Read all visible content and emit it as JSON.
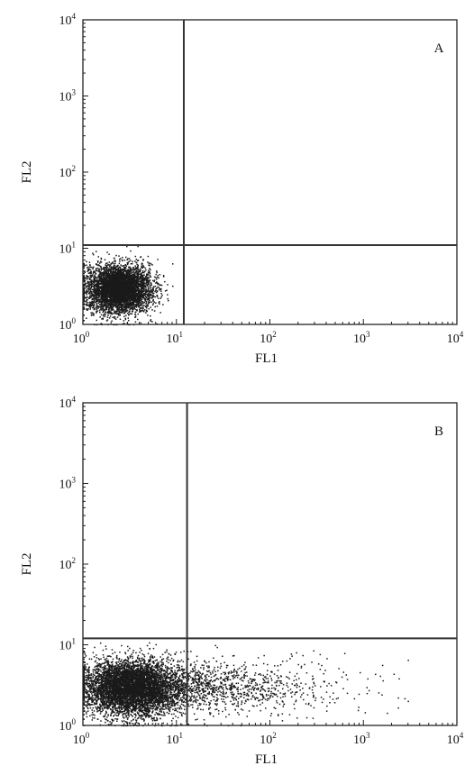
{
  "chart_data": [
    {
      "type": "scatter",
      "panel_label": "A",
      "xlabel": "FL1",
      "ylabel": "FL2",
      "x_scale": "log",
      "y_scale": "log",
      "xlim": [
        1,
        10000
      ],
      "ylim": [
        1,
        10000
      ],
      "x_ticks": [
        1,
        10,
        100,
        1000,
        10000
      ],
      "y_ticks": [
        1,
        10,
        100,
        1000,
        10000
      ],
      "tick_labels": [
        {
          "base": "10",
          "exp": "0"
        },
        {
          "base": "10",
          "exp": "1"
        },
        {
          "base": "10",
          "exp": "2"
        },
        {
          "base": "10",
          "exp": "3"
        },
        {
          "base": "10",
          "exp": "4"
        }
      ],
      "quadrant_gate": {
        "x": 12,
        "y": 11
      },
      "points_color": "#1a1a1a",
      "population": {
        "center_x": 2.4,
        "center_y": 3.0,
        "x_log_spread": 0.17,
        "y_log_spread": 0.15,
        "tail_fraction": 0.0,
        "x_max": 9
      },
      "events_shown": 5000
    },
    {
      "type": "scatter",
      "panel_label": "B",
      "xlabel": "FL1",
      "ylabel": "FL2",
      "x_scale": "log",
      "y_scale": "log",
      "xlim": [
        1,
        10000
      ],
      "ylim": [
        1,
        10000
      ],
      "x_ticks": [
        1,
        10,
        100,
        1000,
        10000
      ],
      "y_ticks": [
        1,
        10,
        100,
        1000,
        10000
      ],
      "tick_labels": [
        {
          "base": "10",
          "exp": "0"
        },
        {
          "base": "10",
          "exp": "1"
        },
        {
          "base": "10",
          "exp": "2"
        },
        {
          "base": "10",
          "exp": "3"
        },
        {
          "base": "10",
          "exp": "4"
        }
      ],
      "quadrant_gate": {
        "x": 13,
        "y": 12
      },
      "points_color": "#1a1a1a",
      "population": {
        "center_x": 3.2,
        "center_y": 3.0,
        "x_log_spread": 0.25,
        "y_log_spread": 0.17,
        "tail_fraction": 0.18,
        "x_max": 3000
      },
      "events_shown": 7000
    }
  ]
}
